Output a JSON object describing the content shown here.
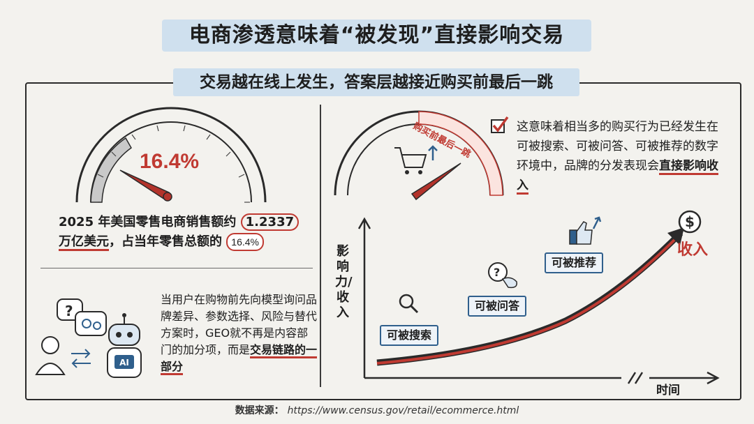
{
  "title": "电商渗透意味着“被发现”直接影响交易",
  "subtitle": "交易越在线上发生，答案层越接近购买前最后一跳",
  "gauge_left": {
    "label": "16.4%",
    "percent": 16.4
  },
  "stat": {
    "line1_prefix": "2025 年美国零售电商销售额约",
    "value": "1.2337",
    "line2_prefix": "万亿美元",
    "line2_mid": "，占当年零售总额的",
    "share": "16.4%"
  },
  "geo_text": {
    "body": "当用户在购物前先向模型询问品牌差异、参数选择、风险与替代方案时，GEO就不再是内容部门的加分项，而是",
    "emphasis": "交易链路的一部分"
  },
  "gauge_right": {
    "arc_label": "购买前最后一跳"
  },
  "check_text": {
    "body": "这意味着相当多的购买行为已经发生在可被搜索、可被问答、可被推荐的数字环境中，品牌的分发表现会",
    "emphasis": "直接影响收入"
  },
  "chart": {
    "y_axis_label": "影响力/收入",
    "x_axis_label": "时间",
    "stages": [
      "可被搜索",
      "可被问答",
      "可被推荐"
    ],
    "outcome_label": "收入",
    "ai_badge": "AI"
  },
  "source": {
    "label": "数据来源：",
    "url": "https://www.census.gov/retail/ecommerce.html"
  },
  "colors": {
    "accent_red": "#c03a32",
    "accent_blue": "#2f5f8c",
    "banner_blue": "#cfe0ee"
  }
}
